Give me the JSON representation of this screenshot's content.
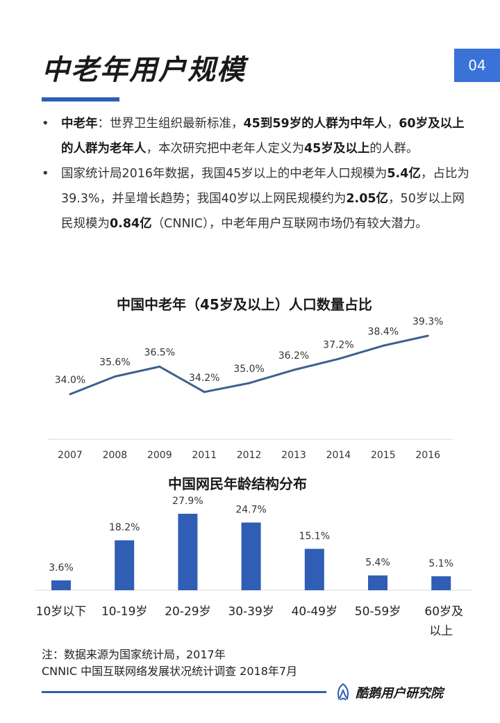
{
  "header": {
    "title": "中老年用户规模",
    "page_number": "04"
  },
  "bullets": [
    [
      {
        "text": "中老年",
        "bold": true
      },
      {
        "text": "：世界卫生组织最新标准，",
        "bold": false
      },
      {
        "text": "45到59岁的人群为中年人",
        "bold": true
      },
      {
        "text": "，",
        "bold": false
      },
      {
        "text": "60岁及以上的人群为老年人",
        "bold": true
      },
      {
        "text": "，本次研究把中老年人定义为",
        "bold": false
      },
      {
        "text": "45岁及以上",
        "bold": true
      },
      {
        "text": "的人群。",
        "bold": false
      }
    ],
    [
      {
        "text": "国家统计局2016年数据，我国45岁以上的中老年人口规模为",
        "bold": false
      },
      {
        "text": "5.4亿",
        "bold": true
      },
      {
        "text": "，占比为39.3%，并呈增长趋势；我国40岁以上网民规模约为",
        "bold": false
      },
      {
        "text": "2.05亿",
        "bold": true
      },
      {
        "text": "，50岁以上网民规模为",
        "bold": false
      },
      {
        "text": "0.84亿",
        "bold": true
      },
      {
        "text": "（CNNIC），中老年用户互联网市场仍有较大潜力。",
        "bold": false
      }
    ]
  ],
  "chart_data": [
    {
      "type": "line",
      "title": "中国中老年（45岁及以上）人口数量占比",
      "categories": [
        "2007",
        "2008",
        "2009",
        "2011",
        "2012",
        "2013",
        "2014",
        "2015",
        "2016"
      ],
      "values": [
        34.0,
        35.6,
        36.5,
        34.2,
        35.0,
        36.2,
        37.2,
        38.4,
        39.3
      ],
      "labels": [
        "34.0%",
        "35.6%",
        "36.5%",
        "34.2%",
        "35.0%",
        "36.2%",
        "37.2%",
        "38.4%",
        "39.3%"
      ],
      "color": "#3f5f8f",
      "grid": false
    },
    {
      "type": "bar",
      "title": "中国网民年龄结构分布",
      "categories": [
        "10岁以下",
        "10-19岁",
        "20-29岁",
        "30-39岁",
        "40-49岁",
        "50-59岁",
        "60岁及以上"
      ],
      "values": [
        3.6,
        18.2,
        27.9,
        24.7,
        15.1,
        5.4,
        5.1
      ],
      "labels": [
        "3.6%",
        "18.2%",
        "27.9%",
        "24.7%",
        "15.1%",
        "5.4%",
        "5.1%"
      ],
      "color": "#2f5eb4",
      "grid": false
    }
  ],
  "notes": [
    "注：数据来源为国家统计局，2017年",
    "CNNIC 中国互联网络发展状况统计调查 2018年7月"
  ],
  "footer": {
    "logo_text": "酷鹅用户研究院"
  },
  "colors": {
    "accent": "#2f5eb4",
    "badge": "#3a72d8"
  }
}
